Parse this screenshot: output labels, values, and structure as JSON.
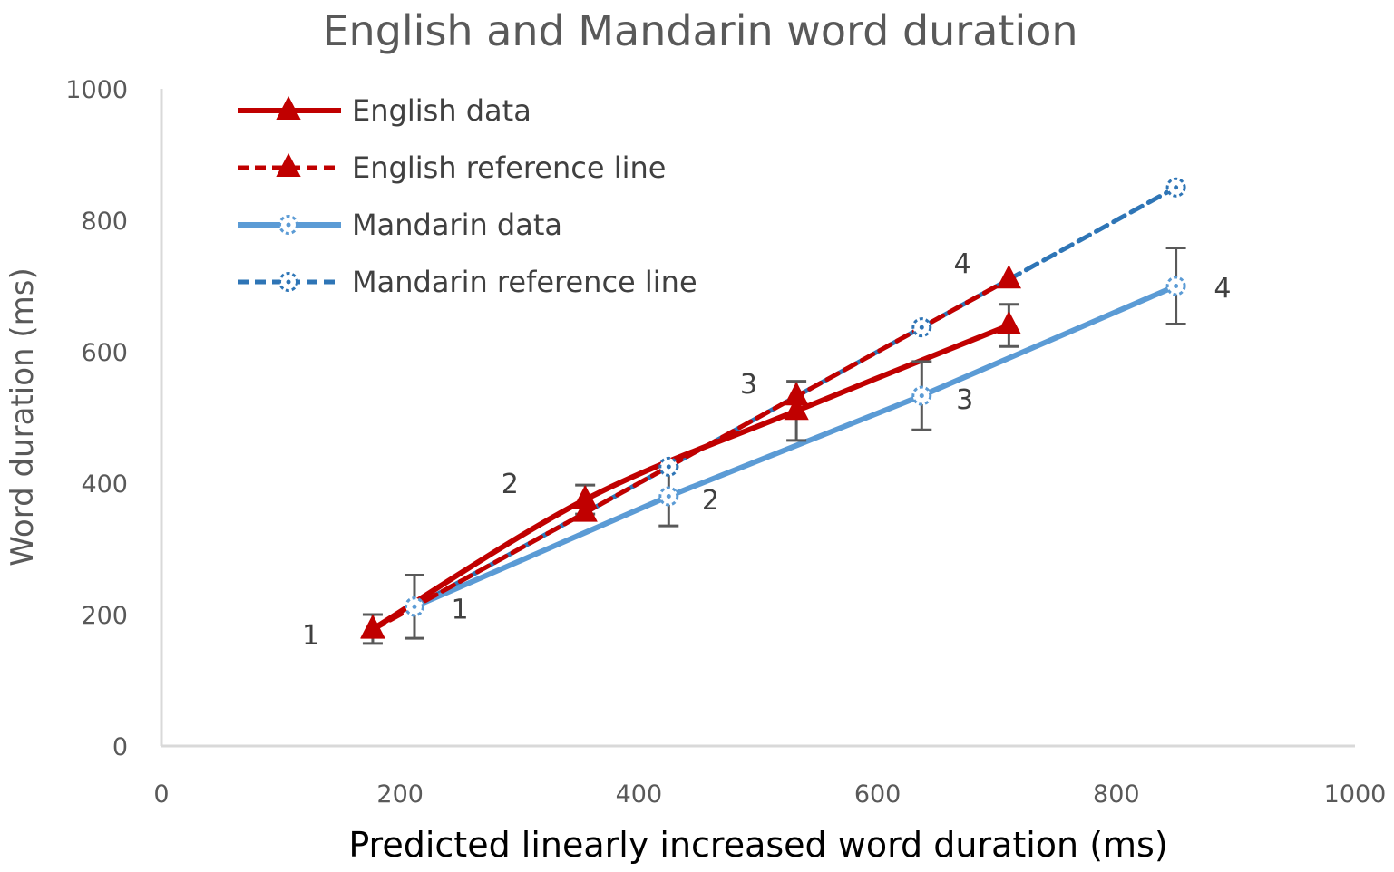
{
  "chart_data": {
    "type": "line",
    "title": "English and Mandarin word duration",
    "xlabel": "Predicted linearly increased word duration (ms)",
    "ylabel": "Word duration (ms)",
    "xlim": [
      0,
      1000
    ],
    "ylim": [
      0,
      1000
    ],
    "x_ticks": [
      "0",
      "200",
      "400",
      "600",
      "800",
      "1000"
    ],
    "y_ticks": [
      "0",
      "200",
      "400",
      "600",
      "800",
      "1000"
    ],
    "grid": false,
    "legend_position": "top-left",
    "series": [
      {
        "name": "English data",
        "color": "#C00000",
        "line": "solid",
        "marker": "triangle",
        "x": [
          177,
          355,
          532,
          710
        ],
        "y": [
          178,
          375,
          510,
          640
        ],
        "error": [
          22,
          22,
          45,
          32
        ]
      },
      {
        "name": "English reference line",
        "color": "#C00000",
        "line": "dashed",
        "marker": "triangle",
        "x": [
          177,
          355,
          532,
          710
        ],
        "y": [
          177,
          355,
          532,
          710
        ]
      },
      {
        "name": "Mandarin data",
        "color": "#5B9BD5",
        "line": "solid",
        "marker": "circle-dashed",
        "x": [
          212,
          425,
          637,
          850
        ],
        "y": [
          212,
          380,
          533,
          700
        ],
        "error": [
          48,
          45,
          52,
          58
        ]
      },
      {
        "name": "Mandarin reference line",
        "color": "#2E75B6",
        "line": "dashed",
        "marker": "circle-dashed",
        "x": [
          212,
          425,
          637,
          850
        ],
        "y": [
          212,
          425,
          637,
          850
        ]
      }
    ],
    "annotations": [
      {
        "text": "1",
        "x": 125,
        "y": 170
      },
      {
        "text": "2",
        "x": 292,
        "y": 400
      },
      {
        "text": "3",
        "x": 492,
        "y": 552
      },
      {
        "text": "4",
        "x": 671,
        "y": 735
      },
      {
        "text": "1",
        "x": 250,
        "y": 209
      },
      {
        "text": "2",
        "x": 460,
        "y": 375
      },
      {
        "text": "3",
        "x": 673,
        "y": 528
      },
      {
        "text": "4",
        "x": 889,
        "y": 698
      }
    ],
    "error_bar_color": "#595959",
    "axis_color": "#D9D9D9"
  }
}
